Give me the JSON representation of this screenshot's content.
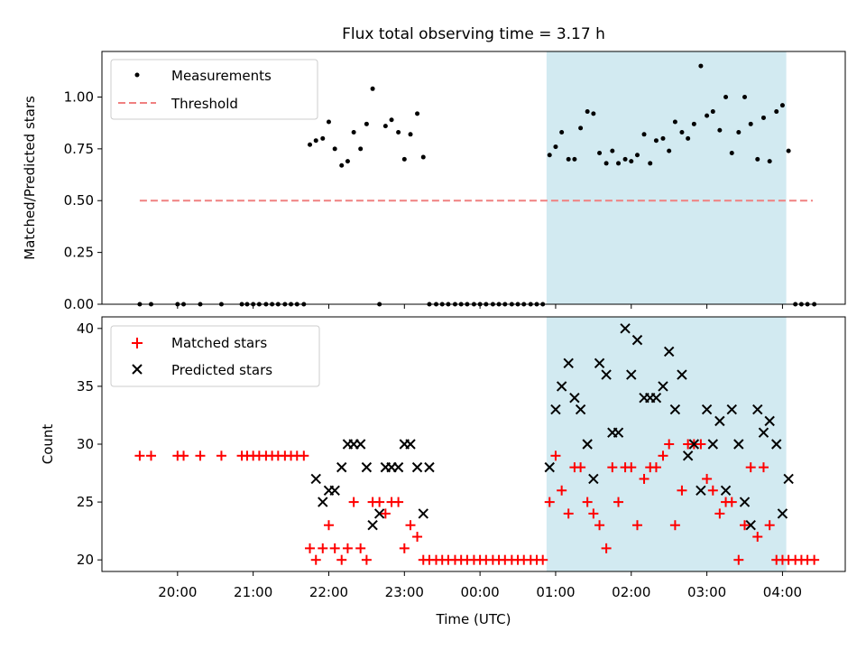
{
  "title": "Flux total observing time = 3.17 h",
  "colors": {
    "measurement": "#000000",
    "threshold": "#f08080",
    "matched": "#ff0000",
    "predicted": "#000000",
    "shade": "#add8e6"
  },
  "chart_data": [
    {
      "type": "scatter",
      "ylabel": "Matched/Predicted stars",
      "ylim": [
        0,
        1.22
      ],
      "yticks": [
        "0.00",
        "0.25",
        "0.50",
        "0.75",
        "1.00"
      ],
      "legend": {
        "placement": "top-left",
        "entries": [
          "Measurements",
          "Threshold"
        ]
      },
      "threshold": 0.5,
      "threshold_x_range": [
        19.5,
        28.4
      ],
      "shaded_region": [
        24.88,
        28.05
      ],
      "series": [
        {
          "name": "Measurements",
          "x": [
            19.5,
            19.65,
            20.0,
            20.08,
            20.3,
            20.58,
            20.85,
            20.92,
            21.0,
            21.08,
            21.17,
            21.25,
            21.33,
            21.42,
            21.5,
            21.58,
            21.67,
            21.75,
            21.83,
            21.92,
            22.0,
            22.08,
            22.17,
            22.25,
            22.33,
            22.42,
            22.5,
            22.58,
            22.67,
            22.75,
            22.83,
            22.92,
            23.0,
            23.08,
            23.17,
            23.25,
            23.33,
            23.42,
            23.5,
            23.58,
            23.67,
            23.75,
            23.83,
            23.92,
            24.0,
            24.08,
            24.17,
            24.25,
            24.33,
            24.42,
            24.5,
            24.58,
            24.67,
            24.75,
            24.83,
            24.92,
            25.0,
            25.08,
            25.17,
            25.25,
            25.33,
            25.42,
            25.5,
            25.58,
            25.67,
            25.75,
            25.83,
            25.92,
            26.0,
            26.08,
            26.17,
            26.25,
            26.33,
            26.42,
            26.5,
            26.58,
            26.67,
            26.75,
            26.83,
            26.92,
            27.0,
            27.08,
            27.17,
            27.25,
            27.33,
            27.42,
            27.5,
            27.58,
            27.67,
            27.75,
            27.83,
            27.92,
            28.0,
            28.08,
            28.17,
            28.25,
            28.33,
            28.42
          ],
          "y": [
            0,
            0,
            0,
            0,
            0,
            0,
            0,
            0,
            0,
            0,
            0,
            0,
            0,
            0,
            0,
            0,
            0,
            0.77,
            0.79,
            0.8,
            0.88,
            0.75,
            0.67,
            0.69,
            0.83,
            0.75,
            0.87,
            1.04,
            0.0,
            0.86,
            0.89,
            0.83,
            0.7,
            0.82,
            0.92,
            0.71,
            0,
            0,
            0,
            0,
            0,
            0,
            0,
            0,
            0,
            0,
            0,
            0,
            0,
            0,
            0,
            0,
            0,
            0,
            0,
            0.72,
            0.76,
            0.83,
            0.7,
            0.7,
            0.85,
            0.93,
            0.92,
            0.73,
            0.68,
            0.74,
            0.68,
            0.7,
            0.69,
            0.72,
            0.82,
            0.68,
            0.79,
            0.8,
            0.74,
            0.88,
            0.83,
            0.8,
            0.87,
            1.15,
            0.91,
            0.93,
            0.84,
            1.0,
            0.73,
            0.83,
            1.0,
            0.87,
            0.7,
            0.9,
            0.69,
            0.93,
            0.96,
            0.74,
            0,
            0,
            0,
            0
          ]
        }
      ]
    },
    {
      "type": "scatter",
      "xlabel": "Time (UTC)",
      "ylabel": "Count",
      "ylim": [
        19,
        41
      ],
      "yticks": [
        "20",
        "25",
        "30",
        "35",
        "40"
      ],
      "xticks": [
        "20:00",
        "21:00",
        "22:00",
        "23:00",
        "00:00",
        "01:00",
        "02:00",
        "03:00",
        "04:00"
      ],
      "xlim": [
        19.0,
        28.83
      ],
      "legend": {
        "placement": "top-left",
        "entries": [
          "Matched stars",
          "Predicted stars"
        ]
      },
      "shaded_region": [
        24.88,
        28.05
      ],
      "series": [
        {
          "name": "Matched stars",
          "x": [
            19.5,
            19.65,
            20.0,
            20.08,
            20.3,
            20.58,
            20.85,
            20.92,
            21.0,
            21.08,
            21.17,
            21.25,
            21.33,
            21.42,
            21.5,
            21.58,
            21.67,
            21.75,
            21.83,
            21.92,
            22.0,
            22.08,
            22.17,
            22.25,
            22.33,
            22.42,
            22.5,
            22.58,
            22.67,
            22.75,
            22.83,
            22.92,
            23.0,
            23.08,
            23.17,
            23.25,
            23.33,
            23.42,
            23.5,
            23.58,
            23.67,
            23.75,
            23.83,
            23.92,
            24.0,
            24.08,
            24.17,
            24.25,
            24.33,
            24.42,
            24.5,
            24.58,
            24.67,
            24.75,
            24.83,
            24.92,
            25.0,
            25.08,
            25.17,
            25.25,
            25.33,
            25.42,
            25.5,
            25.58,
            25.67,
            25.75,
            25.83,
            25.92,
            26.0,
            26.08,
            26.17,
            26.25,
            26.33,
            26.42,
            26.5,
            26.58,
            26.67,
            26.75,
            26.83,
            26.92,
            27.0,
            27.08,
            27.17,
            27.25,
            27.33,
            27.42,
            27.5,
            27.58,
            27.67,
            27.75,
            27.83,
            27.92,
            28.0,
            28.08,
            28.17,
            28.25,
            28.33,
            28.42
          ],
          "y": [
            29,
            29,
            29,
            29,
            29,
            29,
            29,
            29,
            29,
            29,
            29,
            29,
            29,
            29,
            29,
            29,
            29,
            21,
            20,
            21,
            23,
            21,
            20,
            21,
            25,
            21,
            20,
            25,
            25,
            24,
            25,
            25,
            21,
            23,
            22,
            20,
            20,
            20,
            20,
            20,
            20,
            20,
            20,
            20,
            20,
            20,
            20,
            20,
            20,
            20,
            20,
            20,
            20,
            20,
            20,
            25,
            29,
            26,
            24,
            28,
            28,
            25,
            24,
            23,
            21,
            28,
            25,
            28,
            28,
            23,
            27,
            28,
            28,
            29,
            30,
            23,
            26,
            30,
            30,
            30,
            27,
            26,
            24,
            25,
            25,
            20,
            23,
            28,
            22,
            28,
            23,
            20,
            20,
            20,
            20,
            20,
            20,
            20
          ]
        },
        {
          "name": "Predicted stars",
          "x": [
            21.83,
            21.92,
            22.0,
            22.08,
            22.17,
            22.25,
            22.33,
            22.42,
            22.5,
            22.58,
            22.67,
            22.75,
            22.83,
            22.92,
            23.0,
            23.08,
            23.17,
            23.25,
            23.33,
            24.92,
            25.0,
            25.08,
            25.17,
            25.25,
            25.33,
            25.42,
            25.5,
            25.58,
            25.67,
            25.75,
            25.83,
            25.92,
            26.0,
            26.08,
            26.17,
            26.25,
            26.33,
            26.42,
            26.5,
            26.58,
            26.67,
            26.75,
            26.83,
            26.92,
            27.0,
            27.08,
            27.17,
            27.25,
            27.33,
            27.42,
            27.5,
            27.58,
            27.67,
            27.75,
            27.83,
            27.92,
            28.0,
            28.08
          ],
          "y": [
            27,
            25,
            26,
            26,
            28,
            30,
            30,
            30,
            28,
            23,
            24,
            28,
            28,
            28,
            30,
            30,
            28,
            24,
            28,
            28,
            33,
            35,
            37,
            34,
            33,
            30,
            27,
            37,
            36,
            31,
            31,
            40,
            36,
            39,
            34,
            34,
            34,
            35,
            38,
            33,
            36,
            29,
            30,
            26,
            33,
            30,
            32,
            26,
            33,
            30,
            25,
            23,
            33,
            31,
            32,
            30,
            24,
            27
          ]
        }
      ]
    }
  ]
}
